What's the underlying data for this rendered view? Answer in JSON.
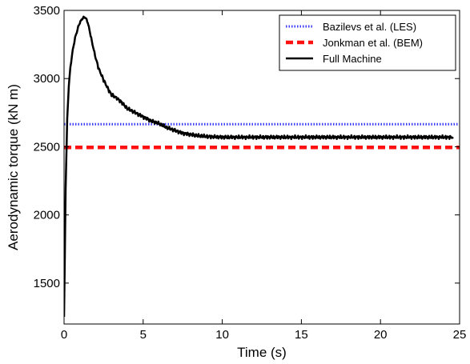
{
  "chart_data": {
    "type": "line",
    "title": "",
    "xlabel": "Time (s)",
    "ylabel": "Aerodynamic torque (kN m)",
    "xlim": [
      0,
      25
    ],
    "ylim": [
      1200,
      3500
    ],
    "xticks": [
      0,
      5,
      10,
      15,
      20,
      25
    ],
    "yticks": [
      1500,
      2000,
      2500,
      3000,
      3500
    ],
    "grid": false,
    "legend_position": "top-right",
    "series": [
      {
        "name": "Bazilevs et al. (LES)",
        "style": "dotted",
        "color": "#3a3aff",
        "x": [
          0,
          25
        ],
        "y": [
          2665,
          2665
        ]
      },
      {
        "name": "Jonkman et al. (BEM)",
        "style": "dashed",
        "color": "#ff1010",
        "x": [
          0,
          25
        ],
        "y": [
          2495,
          2495
        ]
      },
      {
        "name": "Full Machine",
        "style": "solid",
        "color": "#000000",
        "x": [
          0,
          0.05,
          0.1,
          0.2,
          0.3,
          0.4,
          0.5,
          0.6,
          0.7,
          0.8,
          0.9,
          1.0,
          1.1,
          1.2,
          1.3,
          1.4,
          1.5,
          1.6,
          1.8,
          2.0,
          2.2,
          2.5,
          2.8,
          3.0,
          3.3,
          3.6,
          4.0,
          4.5,
          5.0,
          5.5,
          6.0,
          6.5,
          7.0,
          7.5,
          8.0,
          8.5,
          9.0,
          10.0,
          12.0,
          14.0,
          16.0,
          18.0,
          20.0,
          22.0,
          24.0,
          24.6
        ],
        "y": [
          1250,
          1700,
          2200,
          2700,
          2950,
          3080,
          3170,
          3240,
          3300,
          3340,
          3380,
          3410,
          3430,
          3445,
          3450,
          3440,
          3410,
          3360,
          3250,
          3150,
          3070,
          2990,
          2920,
          2880,
          2860,
          2830,
          2780,
          2750,
          2720,
          2690,
          2670,
          2640,
          2620,
          2600,
          2590,
          2580,
          2575,
          2570,
          2570,
          2570,
          2570,
          2570,
          2570,
          2570,
          2570,
          2570
        ]
      }
    ]
  }
}
